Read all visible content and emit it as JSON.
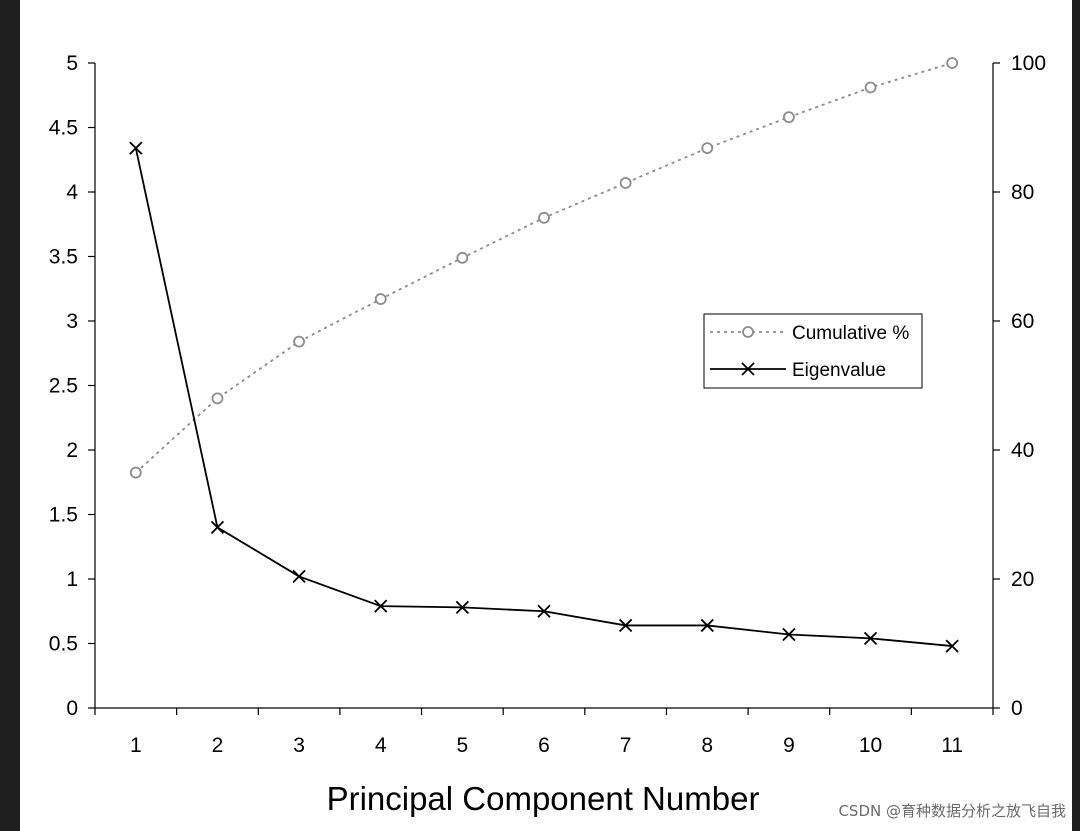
{
  "chart_data": {
    "type": "line",
    "title": "",
    "xlabel": "Principal Component Number",
    "x": [
      1,
      2,
      3,
      4,
      5,
      6,
      7,
      8,
      9,
      10,
      11
    ],
    "xtick_labels": [
      "1",
      "2",
      "3",
      "4",
      "5",
      "6",
      "7",
      "8",
      "9",
      "10",
      "11"
    ],
    "y_left": {
      "label": "",
      "lim": [
        0,
        5
      ],
      "ticks": [
        0,
        0.5,
        1,
        1.5,
        2,
        2.5,
        3,
        3.5,
        4,
        4.5,
        5
      ],
      "tick_labels": [
        "0",
        "0.5",
        "1",
        "1.5",
        "2",
        "2.5",
        "3",
        "3.5",
        "4",
        "4.5",
        "5"
      ]
    },
    "y_right": {
      "label": "",
      "lim": [
        0,
        100
      ],
      "ticks": [
        0,
        20,
        40,
        60,
        80,
        100
      ],
      "tick_labels": [
        "0",
        "20",
        "40",
        "60",
        "80",
        "100"
      ]
    },
    "series": [
      {
        "name": "Cumulative %",
        "axis": "right",
        "style": "dotted",
        "marker": "circle",
        "color": "#8c8c8c",
        "values": [
          36.5,
          48,
          56.8,
          63.4,
          69.8,
          76,
          81.4,
          86.8,
          91.6,
          96.2,
          100
        ]
      },
      {
        "name": "Eigenvalue",
        "axis": "left",
        "style": "solid",
        "marker": "x",
        "color": "#000000",
        "values": [
          4.34,
          1.4,
          1.02,
          0.79,
          0.78,
          0.75,
          0.64,
          0.64,
          0.57,
          0.54,
          0.48
        ]
      }
    ],
    "grid": false,
    "legend_position": "right-center"
  },
  "watermark": "CSDN @育种数据分析之放飞自我"
}
